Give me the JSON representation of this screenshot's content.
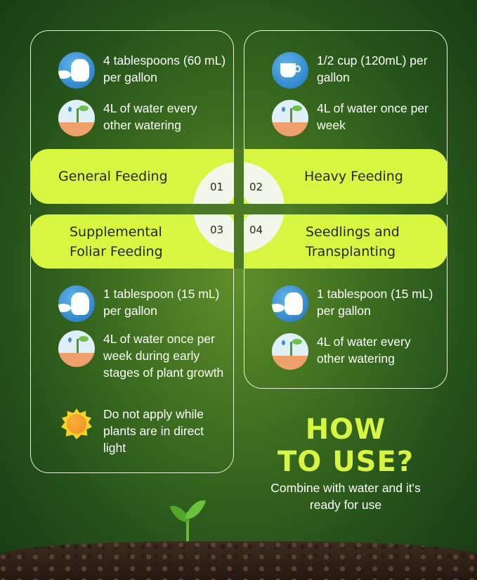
{
  "sections": [
    {
      "number": "01",
      "title": "General Feeding",
      "items": [
        {
          "icon": "spoon-hand-icon",
          "text": "4 tablespoons (60 mL) per gallon"
        },
        {
          "icon": "watering-plants-icon",
          "text": "4L of water every other watering"
        }
      ]
    },
    {
      "number": "02",
      "title": "Heavy Feeding",
      "items": [
        {
          "icon": "cup-icon",
          "text": "1/2 cup (120mL) per gallon"
        },
        {
          "icon": "watering-plants-icon",
          "text": "4L of water once per week"
        }
      ]
    },
    {
      "number": "03",
      "title": "Supplemental Foliar Feeding",
      "items": [
        {
          "icon": "spoon-hand-icon",
          "text": "1 tablespoon (15 mL) per gallon"
        },
        {
          "icon": "watering-plants-icon",
          "text": "4L of water once per week during early stages of plant growth"
        },
        {
          "icon": "sun-icon",
          "text": "Do not apply while plants are in direct light"
        }
      ]
    },
    {
      "number": "04",
      "title": "Seedlings and Transplanting",
      "items": [
        {
          "icon": "spoon-hand-icon",
          "text": "1 tablespoon (15 mL) per gallon"
        },
        {
          "icon": "watering-plants-icon",
          "text": "4L of water every other watering"
        }
      ]
    }
  ],
  "howto": {
    "title_line1": "HOW",
    "title_line2": "TO USE?",
    "subtitle": "Combine with water and it's ready for use"
  },
  "colors": {
    "accent": "#d8f53f",
    "background": "#3f7020",
    "text": "#ffffff"
  }
}
